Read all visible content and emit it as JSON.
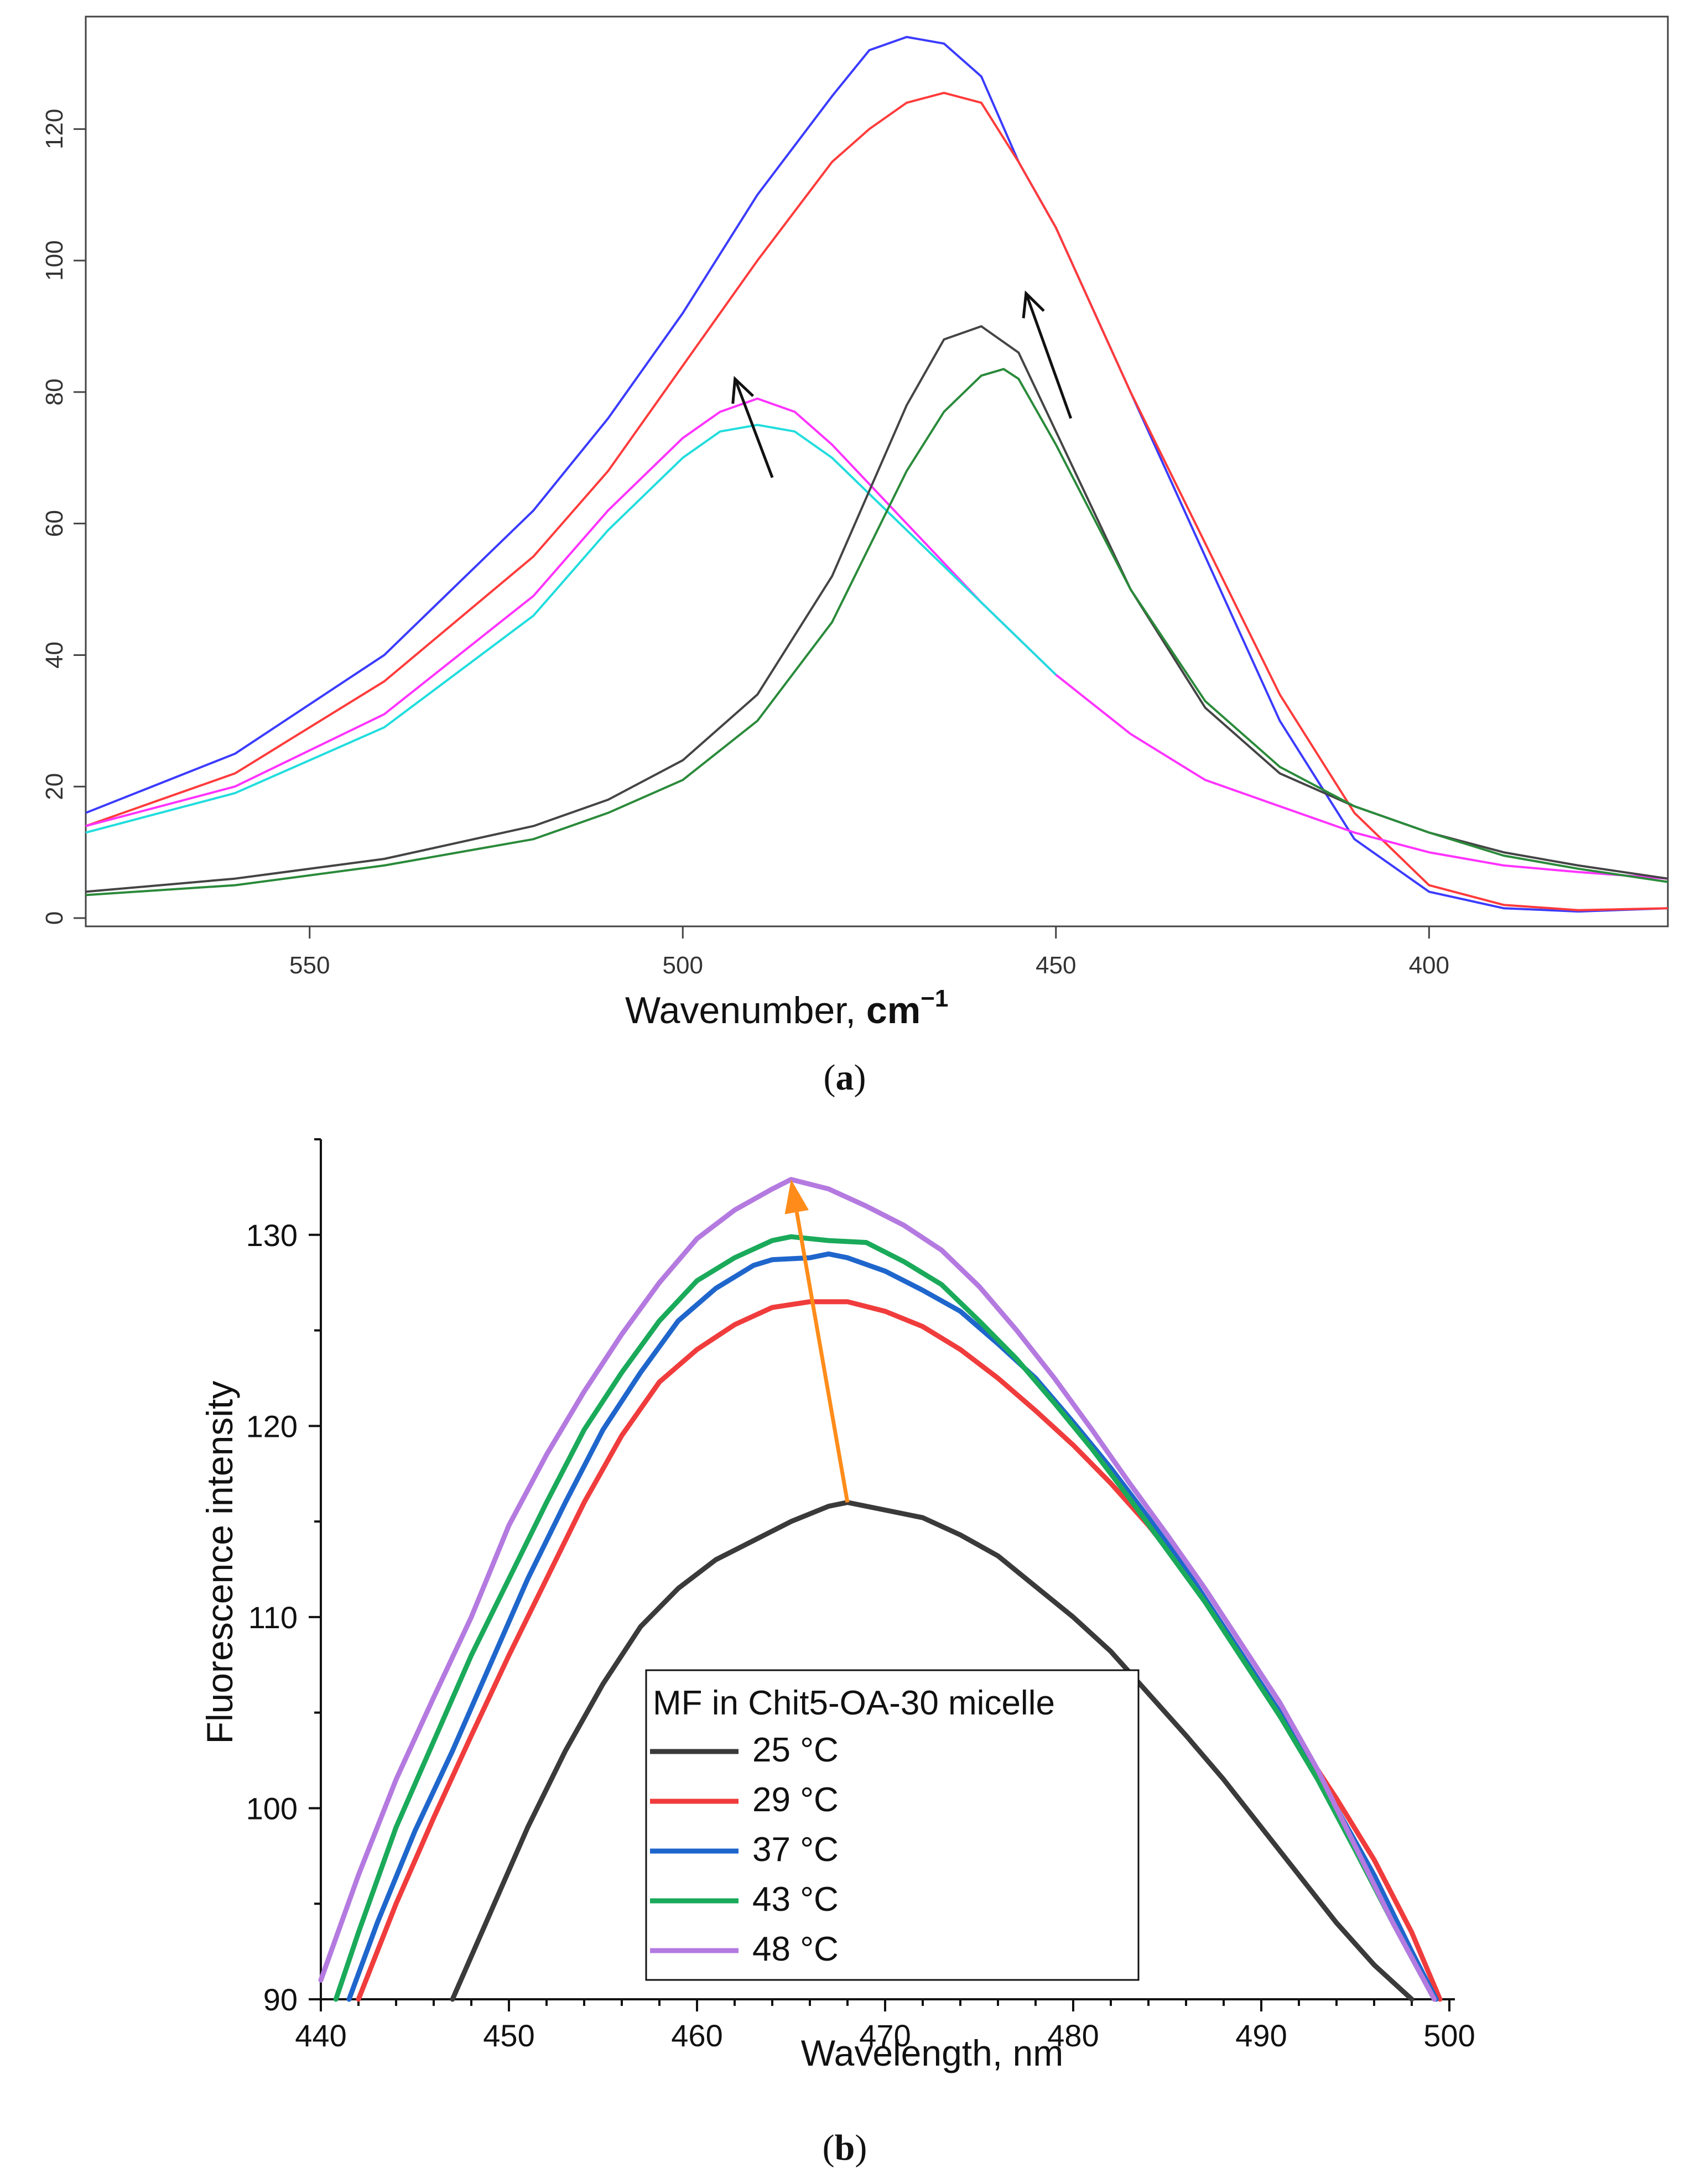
{
  "colors": {
    "blue": "#3b3bff",
    "red": "#ff3b3b",
    "magenta": "#ff33ff",
    "cyan": "#22dddd",
    "gray": "#444444",
    "green": "#2a8a3a",
    "arrow": "#111111",
    "b25": "#3a3a3a",
    "b29": "#f03c3c",
    "b37": "#1f66cc",
    "b43": "#1aaa5a",
    "b48": "#b47ae0",
    "orange": "#ff8c1a"
  },
  "panel_a": {
    "caption_open": "(",
    "caption_letter": "a",
    "caption_close": ")"
  },
  "panel_b": {
    "caption_open": "(",
    "caption_letter": "b",
    "caption_close": ")"
  },
  "chart_data": [
    {
      "type": "line",
      "panel": "a",
      "title": "",
      "xlabel": "Wavenumber, ",
      "xlabel_unit": "cm",
      "xlabel_exp": "−1",
      "ylabel": "",
      "xlim": [
        580,
        368
      ],
      "ylim": [
        0,
        135
      ],
      "xticks": [
        550,
        500,
        450,
        400
      ],
      "yticks": [
        0,
        20,
        40,
        60,
        80,
        100,
        120
      ],
      "grid": false,
      "series": [
        {
          "name": "blue",
          "color_key": "blue",
          "x": [
            580,
            560,
            540,
            520,
            510,
            500,
            490,
            480,
            475,
            470,
            465,
            460,
            455,
            450,
            440,
            430,
            420,
            410,
            400,
            390,
            380,
            368
          ],
          "y": [
            16,
            25,
            40,
            62,
            76,
            92,
            110,
            125,
            132,
            134,
            133,
            128,
            115,
            105,
            80,
            55,
            30,
            12,
            4,
            1.5,
            1,
            1.5
          ]
        },
        {
          "name": "red",
          "color_key": "red",
          "x": [
            580,
            560,
            540,
            520,
            510,
            500,
            490,
            480,
            475,
            470,
            465,
            460,
            455,
            450,
            440,
            430,
            420,
            410,
            400,
            390,
            380,
            368
          ],
          "y": [
            14,
            22,
            36,
            55,
            68,
            84,
            100,
            115,
            120,
            124,
            125.5,
            124,
            115,
            105,
            80,
            57,
            34,
            16,
            5,
            2,
            1.2,
            1.5
          ]
        },
        {
          "name": "magenta",
          "color_key": "magenta",
          "x": [
            580,
            560,
            540,
            520,
            510,
            500,
            495,
            490,
            485,
            480,
            470,
            460,
            450,
            440,
            430,
            420,
            410,
            400,
            390,
            380,
            368
          ],
          "y": [
            14,
            20,
            31,
            49,
            62,
            73,
            77,
            79,
            77,
            72,
            60,
            48,
            37,
            28,
            21,
            17,
            13,
            10,
            8,
            7,
            6
          ]
        },
        {
          "name": "cyan",
          "color_key": "cyan",
          "x": [
            580,
            560,
            540,
            520,
            510,
            500,
            495,
            490,
            485,
            480,
            470,
            460,
            450
          ],
          "y": [
            13,
            19,
            29,
            46,
            59,
            70,
            74,
            75,
            74,
            70,
            59,
            48,
            37
          ]
        },
        {
          "name": "gray",
          "color_key": "gray",
          "x": [
            580,
            560,
            540,
            520,
            510,
            500,
            490,
            480,
            470,
            465,
            460,
            455,
            450,
            440,
            430,
            420,
            410,
            400,
            390,
            380,
            368
          ],
          "y": [
            4,
            6,
            9,
            14,
            18,
            24,
            34,
            52,
            78,
            88,
            90,
            86,
            74,
            50,
            32,
            22,
            17,
            13,
            10,
            8,
            6
          ]
        },
        {
          "name": "green",
          "color_key": "green",
          "x": [
            580,
            560,
            540,
            520,
            510,
            500,
            490,
            480,
            470,
            465,
            460,
            457,
            455,
            450,
            440,
            430,
            420,
            410,
            400,
            390,
            380,
            368
          ],
          "y": [
            3.5,
            5,
            8,
            12,
            16,
            21,
            30,
            45,
            68,
            77,
            82.5,
            83.5,
            82,
            72,
            50,
            33,
            23,
            17,
            13,
            9.5,
            7.5,
            5.5
          ]
        }
      ],
      "annotations": [
        {
          "type": "arrow",
          "from": [
            488,
            67
          ],
          "to": [
            493,
            82
          ]
        },
        {
          "type": "arrow",
          "from": [
            448,
            76
          ],
          "to": [
            454,
            95
          ]
        }
      ]
    },
    {
      "type": "line",
      "panel": "b",
      "title": "",
      "xlabel": "Wavelength, nm",
      "ylabel": "Fluorescence intensity",
      "xlim": [
        440,
        500
      ],
      "ylim": [
        90,
        135
      ],
      "xticks": [
        440,
        450,
        460,
        470,
        480,
        490,
        500
      ],
      "yticks": [
        90,
        100,
        110,
        120,
        130
      ],
      "grid": false,
      "legend_title": "MF in Chit5-OA-30 micelle",
      "legend_position": "bottom-center",
      "series": [
        {
          "name": "25 °C",
          "color_key": "b25",
          "x": [
            447,
            449,
            451,
            453,
            455,
            457,
            459,
            461,
            463,
            465,
            467,
            468,
            470,
            472,
            474,
            476,
            478,
            480,
            482,
            484,
            486,
            488,
            490,
            492,
            494,
            496,
            498
          ],
          "y": [
            90,
            94.5,
            99,
            103,
            106.5,
            109.5,
            111.5,
            113,
            114,
            115,
            115.8,
            116,
            115.6,
            115.2,
            114.3,
            113.2,
            111.6,
            110,
            108.2,
            106,
            103.8,
            101.5,
            99,
            96.5,
            94,
            91.8,
            90
          ]
        },
        {
          "name": "29 °C",
          "color_key": "b29",
          "x": [
            442,
            444,
            446,
            448,
            450,
            452,
            454,
            456,
            458,
            460,
            462,
            464,
            466,
            468,
            470,
            472,
            474,
            476,
            478,
            480,
            482,
            484,
            486,
            488,
            490,
            492,
            494,
            496,
            498,
            499.5
          ],
          "y": [
            90,
            95,
            99.5,
            103.8,
            108,
            112,
            116,
            119.5,
            122.3,
            124,
            125.3,
            126.2,
            126.5,
            126.5,
            126,
            125.2,
            124,
            122.5,
            120.8,
            119,
            117,
            114.8,
            112.3,
            109.5,
            106.5,
            103.5,
            100.5,
            97.3,
            93.5,
            90
          ]
        },
        {
          "name": "37 °C",
          "color_key": "b37",
          "x": [
            441.5,
            443,
            445,
            447,
            449,
            451,
            453,
            455,
            457,
            459,
            461,
            463,
            464,
            466,
            467,
            468,
            470,
            472,
            474,
            476,
            478,
            480,
            482,
            484,
            486,
            488,
            490,
            492,
            494,
            496,
            498,
            499.3
          ],
          "y": [
            90,
            94,
            98.8,
            103,
            107.5,
            112,
            116,
            119.8,
            122.8,
            125.5,
            127.2,
            128.4,
            128.7,
            128.8,
            129,
            128.8,
            128.1,
            127.1,
            126,
            124.3,
            122.5,
            120.2,
            117.8,
            115.2,
            112.5,
            109.5,
            106.5,
            103.5,
            100,
            96.5,
            92.5,
            90
          ]
        },
        {
          "name": "43 °C",
          "color_key": "b43",
          "x": [
            440.8,
            442,
            444,
            446,
            448,
            450,
            452,
            454,
            456,
            458,
            460,
            462,
            464,
            465,
            467,
            469,
            471,
            473,
            475,
            477,
            479,
            481,
            483,
            485,
            487,
            489,
            491,
            493,
            495,
            497,
            499.2
          ],
          "y": [
            90,
            93.5,
            99,
            103.5,
            108,
            112,
            116,
            119.8,
            122.8,
            125.5,
            127.6,
            128.8,
            129.7,
            129.9,
            129.7,
            129.6,
            128.6,
            127.4,
            125.5,
            123.5,
            121.2,
            118.8,
            116.2,
            113.5,
            110.8,
            107.8,
            104.8,
            101.5,
            97.8,
            94,
            90
          ]
        },
        {
          "name": "48 °C",
          "color_key": "b48",
          "x": [
            440,
            442,
            444,
            446,
            448,
            450,
            452,
            454,
            456,
            458,
            460,
            462,
            464,
            465,
            467,
            469,
            471,
            473,
            475,
            477,
            479,
            481,
            483,
            485,
            487,
            489,
            491,
            493,
            495,
            497,
            499.2
          ],
          "y": [
            91,
            96.5,
            101.5,
            105.8,
            110,
            114.8,
            118.5,
            121.8,
            124.8,
            127.5,
            129.8,
            131.3,
            132.4,
            132.9,
            132.4,
            131.5,
            130.5,
            129.2,
            127.3,
            125,
            122.5,
            119.8,
            117,
            114.3,
            111.5,
            108.5,
            105.5,
            102,
            98,
            94,
            90
          ]
        }
      ],
      "annotations": [
        {
          "type": "arrow",
          "from": [
            468,
            116
          ],
          "to": [
            465,
            132.9
          ]
        }
      ]
    }
  ]
}
